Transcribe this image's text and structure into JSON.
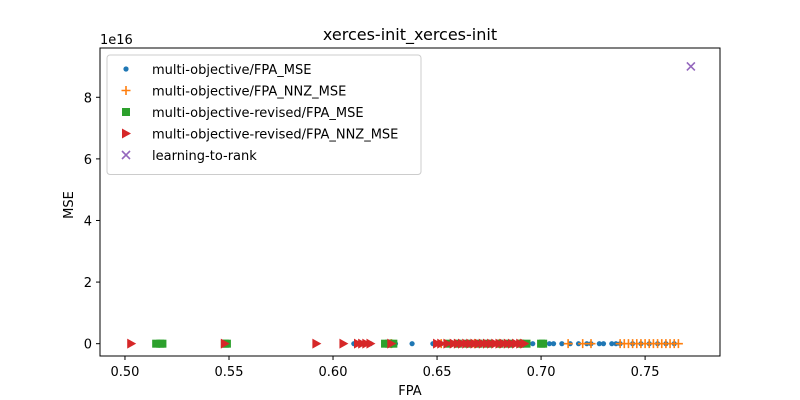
{
  "chart_data": {
    "type": "scatter",
    "title": "xerces-init_xerces-init",
    "xlabel": "FPA",
    "ylabel": "MSE",
    "y_offset_text": "1e16",
    "xlim": [
      0.488,
      0.786
    ],
    "ylim": [
      -0.4,
      9.6
    ],
    "y_scale_factor": "1e16",
    "x_ticks": [
      0.5,
      0.55,
      0.6,
      0.65,
      0.7,
      0.75
    ],
    "x_tick_labels": [
      "0.50",
      "0.55",
      "0.60",
      "0.65",
      "0.70",
      "0.75"
    ],
    "y_ticks": [
      0,
      2,
      4,
      6,
      8
    ],
    "y_tick_labels": [
      "0",
      "2",
      "4",
      "6",
      "8"
    ],
    "grid": false,
    "legend_position": "top-left",
    "series": [
      {
        "name": "multi-objective/FPA_MSE",
        "marker": "circle",
        "color": "#1f77b4",
        "x": [
          0.61,
          0.614,
          0.618,
          0.628,
          0.63,
          0.638,
          0.648,
          0.652,
          0.656,
          0.66,
          0.664,
          0.668,
          0.672,
          0.676,
          0.68,
          0.684,
          0.688,
          0.692,
          0.696,
          0.7,
          0.704,
          0.706,
          0.71,
          0.714,
          0.718,
          0.722,
          0.724,
          0.728,
          0.73,
          0.734,
          0.736,
          0.738,
          0.744,
          0.748,
          0.752,
          0.756,
          0.76,
          0.764
        ],
        "y": [
          0,
          0,
          0,
          0,
          0,
          0,
          0,
          0,
          0,
          0,
          0,
          0,
          0,
          0,
          0,
          0,
          0,
          0,
          0,
          0,
          0,
          0,
          0,
          0,
          0,
          0,
          0,
          0,
          0,
          0,
          0,
          0,
          0,
          0,
          0,
          0,
          0,
          0
        ]
      },
      {
        "name": "multi-objective/FPA_NNZ_MSE",
        "marker": "plus",
        "color": "#ff7f0e",
        "x": [
          0.628,
          0.652,
          0.668,
          0.68,
          0.69,
          0.713,
          0.72,
          0.724,
          0.738,
          0.74,
          0.742,
          0.744,
          0.746,
          0.748,
          0.75,
          0.752,
          0.754,
          0.756,
          0.758,
          0.76,
          0.762,
          0.764,
          0.766
        ],
        "y": [
          0,
          0,
          0,
          0,
          0,
          0,
          0,
          0,
          0,
          0,
          0,
          0,
          0,
          0,
          0,
          0,
          0,
          0,
          0,
          0,
          0,
          0,
          0
        ]
      },
      {
        "name": "multi-objective-revised/FPA_MSE",
        "marker": "square",
        "color": "#2ca02c",
        "x": [
          0.515,
          0.517,
          0.518,
          0.548,
          0.549,
          0.625,
          0.627,
          0.629,
          0.655,
          0.66,
          0.665,
          0.67,
          0.675,
          0.68,
          0.685,
          0.69,
          0.693,
          0.7,
          0.701
        ],
        "y": [
          0,
          0,
          0,
          0,
          0,
          0,
          0,
          0,
          0,
          0,
          0,
          0,
          0,
          0,
          0,
          0,
          0,
          0,
          0
        ]
      },
      {
        "name": "multi-objective-revised/FPA_NNZ_MSE",
        "marker": "triangle-right",
        "color": "#d62728",
        "x": [
          0.503,
          0.548,
          0.592,
          0.605,
          0.612,
          0.614,
          0.616,
          0.618,
          0.628,
          0.65,
          0.652,
          0.655,
          0.658,
          0.66,
          0.662,
          0.664,
          0.666,
          0.668,
          0.67,
          0.672,
          0.674,
          0.676,
          0.678,
          0.68,
          0.682,
          0.684,
          0.686,
          0.688,
          0.69,
          0.692
        ],
        "y": [
          0,
          0,
          0,
          0,
          0,
          0,
          0,
          0,
          0,
          0,
          0,
          0,
          0,
          0,
          0,
          0,
          0,
          0,
          0,
          0,
          0,
          0,
          0,
          0,
          0,
          0,
          0,
          0,
          0,
          0
        ]
      },
      {
        "name": "learning-to-rank",
        "marker": "x",
        "color": "#9467bd",
        "x": [
          0.772
        ],
        "y": [
          9.0
        ]
      }
    ]
  }
}
